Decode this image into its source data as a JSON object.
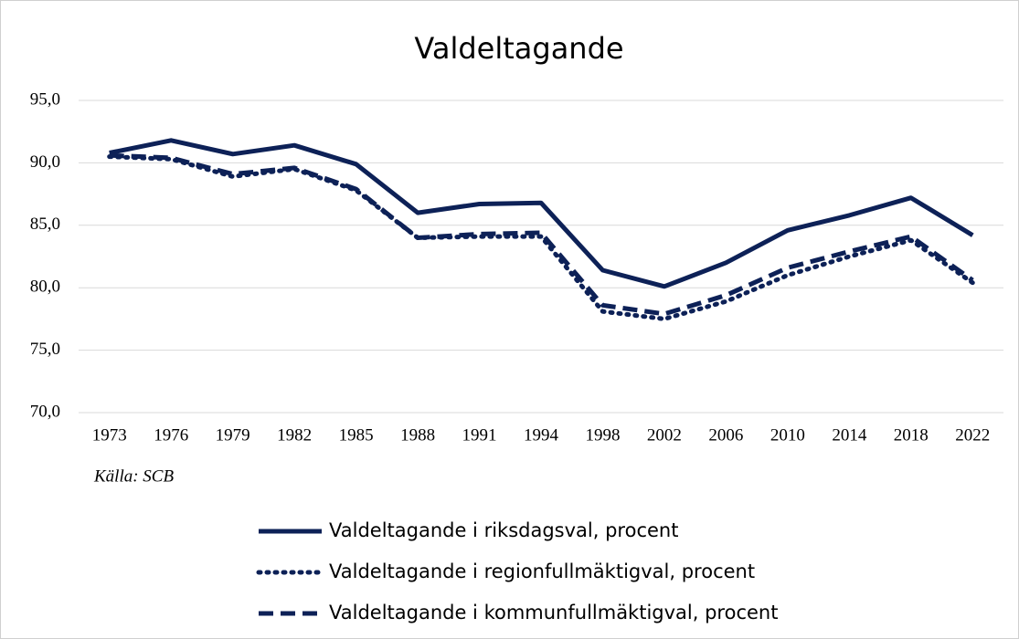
{
  "chart_data": {
    "type": "line",
    "title": "Valdeltagande",
    "source": "Källa: SCB",
    "categories": [
      "1973",
      "1976",
      "1979",
      "1982",
      "1985",
      "1988",
      "1991",
      "1994",
      "1998",
      "2002",
      "2006",
      "2010",
      "2014",
      "2018",
      "2022"
    ],
    "series": [
      {
        "name": "Valdeltagande i riksdagsval, procent",
        "color": "#0d2157",
        "style": "solid",
        "values": [
          90.8,
          91.8,
          90.7,
          91.4,
          89.9,
          86.0,
          86.7,
          86.8,
          81.4,
          80.1,
          82.0,
          84.6,
          85.8,
          87.2,
          84.2
        ]
      },
      {
        "name": "Valdeltagande i regionfullmäktigval, procent",
        "color": "#0d2157",
        "style": "dotted",
        "values": [
          90.5,
          90.3,
          88.9,
          89.5,
          87.8,
          84.0,
          84.1,
          84.1,
          78.1,
          77.5,
          78.9,
          81.0,
          82.5,
          83.8,
          80.4
        ]
      },
      {
        "name": "Valdeltagande i kommunfullmäktigval, procent",
        "color": "#0d2157",
        "style": "dashed",
        "values": [
          90.6,
          90.4,
          89.1,
          89.6,
          87.9,
          84.0,
          84.3,
          84.4,
          78.6,
          77.9,
          79.4,
          81.6,
          82.9,
          84.1,
          80.6
        ]
      }
    ],
    "ylim": [
      70,
      95
    ],
    "yticks": [
      {
        "value": 70,
        "label": "70,0"
      },
      {
        "value": 75,
        "label": "75,0"
      },
      {
        "value": 80,
        "label": "80,0"
      },
      {
        "value": 85,
        "label": "85,0"
      },
      {
        "value": 90,
        "label": "90,0"
      },
      {
        "value": 95,
        "label": "95,0"
      }
    ],
    "grid": true,
    "legend": "bottom"
  }
}
